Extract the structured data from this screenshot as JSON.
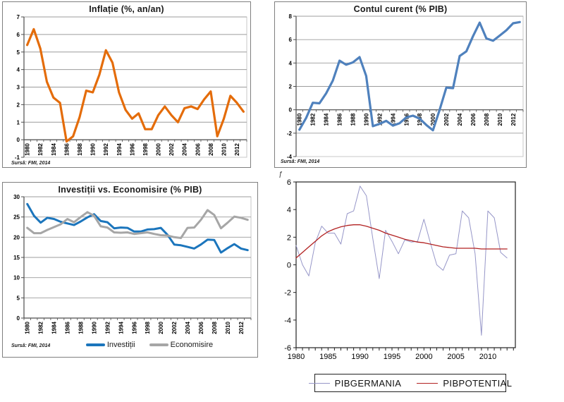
{
  "chart_data": {
    "years": [
      1980,
      1981,
      1982,
      1983,
      1984,
      1985,
      1986,
      1987,
      1988,
      1989,
      1990,
      1991,
      1992,
      1993,
      1994,
      1995,
      1996,
      1997,
      1998,
      1999,
      2000,
      2001,
      2002,
      2003,
      2004,
      2005,
      2006,
      2007,
      2008,
      2009,
      2010,
      2011,
      2012,
      2013
    ],
    "charts": [
      {
        "id": "inflation",
        "type": "line",
        "title": "Inflație (%, an/an)",
        "source": "Sursă: FMI, 2014",
        "ylim": [
          -1,
          7
        ],
        "ytick_step": 1,
        "xlabel_every": 2,
        "series": [
          {
            "name": "Inflație",
            "color": "#E46C0A",
            "width": 3.2,
            "values": [
              5.4,
              6.3,
              5.2,
              3.3,
              2.4,
              2.1,
              -0.1,
              0.2,
              1.3,
              2.8,
              2.7,
              3.7,
              5.1,
              4.4,
              2.7,
              1.7,
              1.2,
              1.5,
              0.6,
              0.6,
              1.4,
              1.9,
              1.4,
              1.0,
              1.8,
              1.9,
              1.75,
              2.3,
              2.75,
              0.2,
              1.2,
              2.5,
              2.1,
              1.6
            ]
          }
        ]
      },
      {
        "id": "current-account",
        "type": "line",
        "title": "Contul curent (% PIB)",
        "source": "Sursă: FMI, 2014",
        "ylim": [
          -4,
          8
        ],
        "ytick_step": 2,
        "xlabel_every": 2,
        "series": [
          {
            "name": "Contul curent",
            "color": "#4F81BD",
            "width": 3.2,
            "values": [
              -1.7,
              -0.7,
              0.6,
              0.55,
              1.4,
              2.5,
              4.2,
              3.85,
              4.05,
              4.5,
              2.9,
              -1.4,
              -1.2,
              -0.95,
              -1.35,
              -1.15,
              -0.65,
              -0.5,
              -0.75,
              -1.3,
              -1.75,
              0.0,
              1.9,
              1.85,
              4.6,
              5.0,
              6.3,
              7.45,
              6.1,
              5.9,
              6.35,
              6.8,
              7.4,
              7.5
            ]
          }
        ]
      },
      {
        "id": "investment-saving",
        "type": "line",
        "title": "Investiții vs. Economisire (% PIB)",
        "source": "Sursă: FMI, 2014",
        "ylim": [
          0,
          30
        ],
        "ytick_step": 5,
        "xlabel_every": 2,
        "series": [
          {
            "name": "Investiții",
            "color": "#1B75BC",
            "width": 3,
            "values": [
              28.2,
              25.3,
              23.6,
              24.8,
              24.5,
              23.8,
              23.4,
              23.0,
              23.9,
              24.9,
              25.7,
              24.0,
              23.7,
              22.2,
              22.4,
              22.3,
              21.4,
              21.4,
              21.9,
              22.0,
              22.3,
              20.6,
              18.2,
              18.0,
              17.6,
              17.2,
              18.2,
              19.4,
              19.3,
              16.2,
              17.3,
              18.3,
              17.2,
              16.8
            ]
          },
          {
            "name": "Economisire",
            "color": "#A6A6A6",
            "width": 3,
            "values": [
              22.3,
              21.0,
              21.0,
              21.8,
              22.5,
              23.2,
              24.5,
              23.7,
              25.0,
              26.2,
              25.3,
              22.7,
              22.4,
              21.2,
              21.1,
              21.2,
              20.8,
              21.0,
              21.2,
              20.8,
              20.5,
              20.4,
              20.0,
              19.8,
              22.3,
              22.4,
              24.3,
              26.7,
              25.5,
              22.2,
              23.6,
              25.1,
              24.8,
              24.3
            ]
          }
        ]
      },
      {
        "id": "gdp",
        "type": "line",
        "title": "",
        "stray_glyph": "ƒ",
        "ylim": [
          -6,
          6
        ],
        "ytick_step": 2,
        "xticks": [
          1980,
          1985,
          1990,
          1995,
          2000,
          2005,
          2010
        ],
        "series": [
          {
            "name": "PIBGERMANIA",
            "color": "#9696C8",
            "width": 1,
            "values": [
              1.4,
              0.0,
              -0.8,
              1.6,
              2.8,
              2.3,
              2.3,
              1.5,
              3.7,
              3.9,
              5.7,
              5.0,
              1.9,
              -1.0,
              2.5,
              1.7,
              0.8,
              1.8,
              1.65,
              1.7,
              3.3,
              1.6,
              0.0,
              -0.4,
              0.7,
              0.8,
              3.9,
              3.4,
              0.8,
              -5.1,
              3.9,
              3.4,
              0.9,
              0.5
            ]
          },
          {
            "name": "PIBPOTENTIAL",
            "color": "#B22222",
            "width": 1.3,
            "values": [
              0.5,
              0.9,
              1.3,
              1.7,
              2.1,
              2.4,
              2.6,
              2.75,
              2.85,
              2.9,
              2.9,
              2.8,
              2.65,
              2.5,
              2.3,
              2.15,
              2.0,
              1.85,
              1.75,
              1.65,
              1.6,
              1.5,
              1.4,
              1.3,
              1.25,
              1.2,
              1.2,
              1.2,
              1.2,
              1.15,
              1.15,
              1.15,
              1.15,
              1.15
            ]
          }
        ]
      }
    ]
  }
}
